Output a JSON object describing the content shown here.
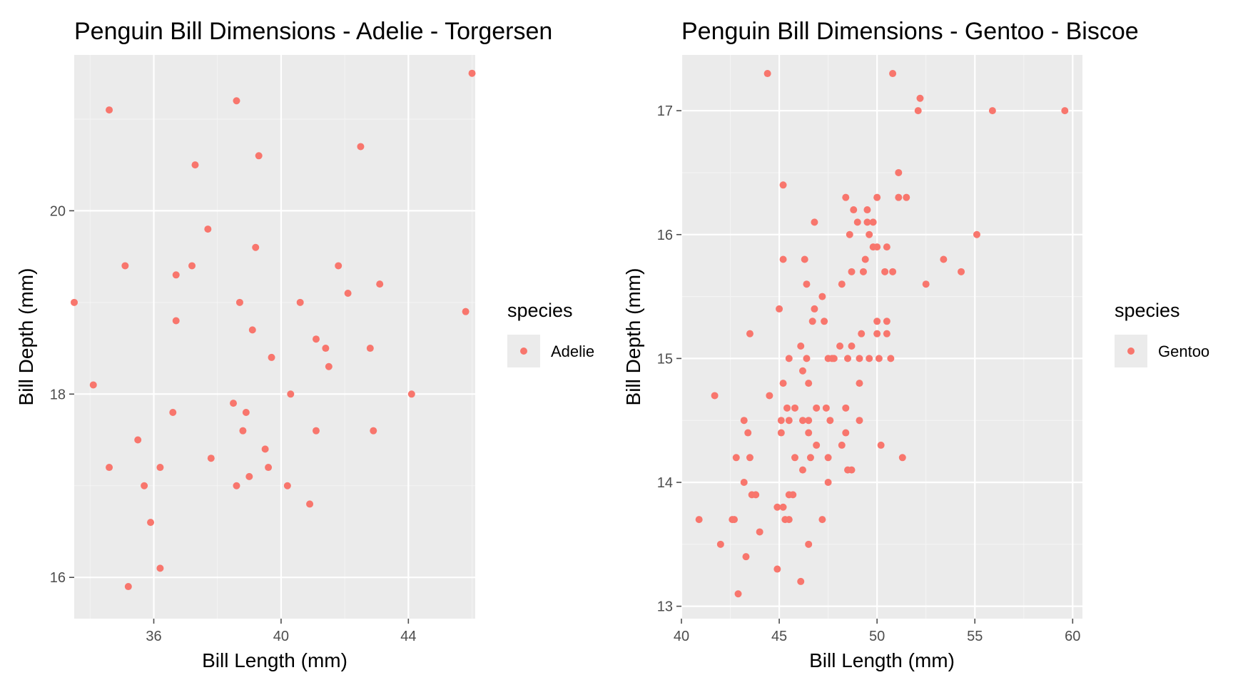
{
  "colors": {
    "point": "#F8766D",
    "panel": "#EBEBEB",
    "grid_major": "#FFFFFF",
    "grid_minor": "#F4F4F4",
    "tick": "#4D4D4D"
  },
  "chart_data": [
    {
      "type": "scatter",
      "title": "Penguin Bill Dimensions - Adelie - Torgersen",
      "xlabel": "Bill Length (mm)",
      "ylabel": "Bill Depth (mm)",
      "xlim": [
        33.5,
        46.1
      ],
      "ylim": [
        15.55,
        21.7
      ],
      "xticks": [
        36,
        40,
        44
      ],
      "yticks": [
        16,
        18,
        20
      ],
      "grid": true,
      "legend": {
        "title": "species",
        "position": "right",
        "entries": [
          "Adelie"
        ]
      },
      "series": [
        {
          "name": "Adelie",
          "points": [
            [
              34.1,
              18.1
            ],
            [
              34.6,
              21.1
            ],
            [
              34.6,
              17.2
            ],
            [
              35.1,
              19.4
            ],
            [
              35.9,
              16.6
            ],
            [
              36.2,
              16.1
            ],
            [
              36.2,
              17.2
            ],
            [
              36.6,
              17.8
            ],
            [
              36.7,
              18.8
            ],
            [
              36.7,
              19.3
            ],
            [
              37.2,
              19.4
            ],
            [
              37.3,
              20.5
            ],
            [
              37.7,
              19.8
            ],
            [
              37.8,
              17.3
            ],
            [
              38.6,
              21.2
            ],
            [
              38.6,
              17.0
            ],
            [
              38.7,
              19.0
            ],
            [
              38.8,
              17.6
            ],
            [
              38.9,
              17.8
            ],
            [
              39.0,
              17.1
            ],
            [
              39.1,
              18.7
            ],
            [
              39.2,
              19.6
            ],
            [
              39.3,
              20.6
            ],
            [
              39.5,
              17.4
            ],
            [
              39.6,
              17.2
            ],
            [
              39.7,
              18.4
            ],
            [
              40.2,
              17.0
            ],
            [
              40.3,
              18.0
            ],
            [
              40.6,
              19.0
            ],
            [
              40.9,
              16.8
            ],
            [
              41.1,
              18.6
            ],
            [
              41.1,
              17.6
            ],
            [
              41.4,
              18.5
            ],
            [
              41.5,
              18.3
            ],
            [
              41.8,
              19.4
            ],
            [
              42.1,
              19.1
            ],
            [
              42.5,
              20.7
            ],
            [
              42.8,
              18.5
            ],
            [
              42.9,
              17.6
            ],
            [
              43.1,
              19.2
            ],
            [
              44.1,
              18.0
            ],
            [
              45.8,
              18.9
            ],
            [
              46.0,
              21.5
            ],
            [
              35.7,
              17.0
            ],
            [
              33.5,
              19.0
            ],
            [
              35.5,
              17.5
            ],
            [
              38.5,
              17.9
            ],
            [
              35.2,
              15.9
            ]
          ]
        }
      ]
    },
    {
      "type": "scatter",
      "title": "Penguin Bill Dimensions - Gentoo - Biscoe",
      "xlabel": "Bill Length (mm)",
      "ylabel": "Bill Depth (mm)",
      "xlim": [
        40.0,
        60.5
      ],
      "ylim": [
        12.9,
        17.45
      ],
      "xticks": [
        40,
        45,
        50,
        55,
        60
      ],
      "yticks": [
        13,
        14,
        15,
        16,
        17
      ],
      "grid": true,
      "legend": {
        "title": "species",
        "position": "right",
        "entries": [
          "Gentoo"
        ]
      },
      "series": [
        {
          "name": "Gentoo",
          "points": [
            [
              40.9,
              13.7
            ],
            [
              41.7,
              14.7
            ],
            [
              42.0,
              13.5
            ],
            [
              42.6,
              13.7
            ],
            [
              42.7,
              13.7
            ],
            [
              42.8,
              14.2
            ],
            [
              42.9,
              13.1
            ],
            [
              43.2,
              14.5
            ],
            [
              43.2,
              14.0
            ],
            [
              43.3,
              13.4
            ],
            [
              43.4,
              14.4
            ],
            [
              43.5,
              15.2
            ],
            [
              43.5,
              14.2
            ],
            [
              43.6,
              13.9
            ],
            [
              43.8,
              13.9
            ],
            [
              44.0,
              13.6
            ],
            [
              44.4,
              17.3
            ],
            [
              44.5,
              14.7
            ],
            [
              44.9,
              13.8
            ],
            [
              44.9,
              13.3
            ],
            [
              45.0,
              15.4
            ],
            [
              45.1,
              14.5
            ],
            [
              45.1,
              14.4
            ],
            [
              45.2,
              16.4
            ],
            [
              45.2,
              15.8
            ],
            [
              45.2,
              14.8
            ],
            [
              45.2,
              13.8
            ],
            [
              45.3,
              13.7
            ],
            [
              45.4,
              14.6
            ],
            [
              45.5,
              13.7
            ],
            [
              45.5,
              15.0
            ],
            [
              45.5,
              14.5
            ],
            [
              45.5,
              13.9
            ],
            [
              45.7,
              13.9
            ],
            [
              45.8,
              14.6
            ],
            [
              45.8,
              14.2
            ],
            [
              46.1,
              13.2
            ],
            [
              46.1,
              15.1
            ],
            [
              46.2,
              14.5
            ],
            [
              46.2,
              14.9
            ],
            [
              46.2,
              14.1
            ],
            [
              46.3,
              15.8
            ],
            [
              46.4,
              15.6
            ],
            [
              46.4,
              15.0
            ],
            [
              46.5,
              14.5
            ],
            [
              46.5,
              14.4
            ],
            [
              46.5,
              13.5
            ],
            [
              46.5,
              14.8
            ],
            [
              46.6,
              14.2
            ],
            [
              46.7,
              15.3
            ],
            [
              46.8,
              16.1
            ],
            [
              46.8,
              15.4
            ],
            [
              46.9,
              14.6
            ],
            [
              46.9,
              14.3
            ],
            [
              47.2,
              13.7
            ],
            [
              47.2,
              15.5
            ],
            [
              47.3,
              15.3
            ],
            [
              47.4,
              14.6
            ],
            [
              47.5,
              14.2
            ],
            [
              47.5,
              14.0
            ],
            [
              47.5,
              15.0
            ],
            [
              47.6,
              14.5
            ],
            [
              47.7,
              15.0
            ],
            [
              47.8,
              15.0
            ],
            [
              48.1,
              15.1
            ],
            [
              48.2,
              15.6
            ],
            [
              48.2,
              14.3
            ],
            [
              48.4,
              16.3
            ],
            [
              48.4,
              14.6
            ],
            [
              48.4,
              14.4
            ],
            [
              48.5,
              14.1
            ],
            [
              48.5,
              15.0
            ],
            [
              48.6,
              16.0
            ],
            [
              48.7,
              15.7
            ],
            [
              48.7,
              14.1
            ],
            [
              48.7,
              15.1
            ],
            [
              48.8,
              16.2
            ],
            [
              49.0,
              16.1
            ],
            [
              49.1,
              15.0
            ],
            [
              49.1,
              14.8
            ],
            [
              49.1,
              14.5
            ],
            [
              49.2,
              15.2
            ],
            [
              49.3,
              15.7
            ],
            [
              49.4,
              15.8
            ],
            [
              49.5,
              16.1
            ],
            [
              49.5,
              16.2
            ],
            [
              49.6,
              16.0
            ],
            [
              49.6,
              15.0
            ],
            [
              49.8,
              15.9
            ],
            [
              49.8,
              16.1
            ],
            [
              50.0,
              15.9
            ],
            [
              50.0,
              15.2
            ],
            [
              50.0,
              15.3
            ],
            [
              50.0,
              16.3
            ],
            [
              50.1,
              15.0
            ],
            [
              50.2,
              14.3
            ],
            [
              50.4,
              15.7
            ],
            [
              50.5,
              15.3
            ],
            [
              50.5,
              15.9
            ],
            [
              50.5,
              15.2
            ],
            [
              50.7,
              15.0
            ],
            [
              50.8,
              17.3
            ],
            [
              50.8,
              15.7
            ],
            [
              51.1,
              16.5
            ],
            [
              51.1,
              16.3
            ],
            [
              51.3,
              14.2
            ],
            [
              51.5,
              16.3
            ],
            [
              52.1,
              17.0
            ],
            [
              52.2,
              17.1
            ],
            [
              52.5,
              15.6
            ],
            [
              53.4,
              15.8
            ],
            [
              54.3,
              15.7
            ],
            [
              55.1,
              16.0
            ],
            [
              55.9,
              17.0
            ],
            [
              59.6,
              17.0
            ]
          ]
        }
      ]
    }
  ]
}
